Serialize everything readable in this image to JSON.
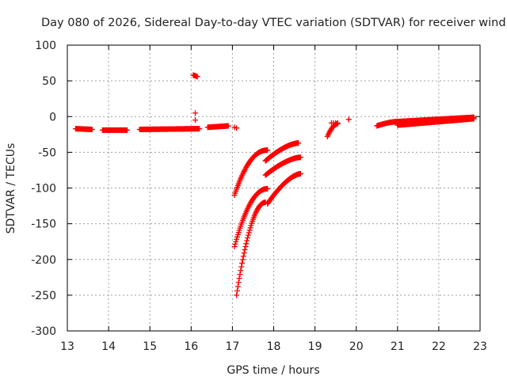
{
  "chart_data": {
    "type": "scatter",
    "title": "Day 080 of 2026, Sidereal Day-to-day VTEC variation (SDTVAR) for receiver wind",
    "xlabel": "GPS time / hours",
    "ylabel": "SDTVAR / TECUs",
    "xlim": [
      13,
      23
    ],
    "ylim": [
      -300,
      100
    ],
    "xticks": [
      "13",
      "14",
      "15",
      "16",
      "17",
      "18",
      "19",
      "20",
      "21",
      "22",
      "23"
    ],
    "yticks": [
      "100",
      "50",
      "0",
      "-50",
      "-100",
      "-150",
      "-200",
      "-250",
      "-300"
    ],
    "grid": true,
    "marker": "+",
    "color": "#ff0000",
    "series": [
      {
        "name": "SDTVAR",
        "segments": [
          {
            "x0": 13.2,
            "y0": -17,
            "x1": 13.6,
            "y1": -18,
            "step": 0.0167
          },
          {
            "x0": 13.85,
            "y0": -19,
            "x1": 14.45,
            "y1": -19,
            "step": 0.0167
          },
          {
            "x0": 14.75,
            "y0": -18,
            "x1": 16.2,
            "y1": -17,
            "step": 0.0167
          },
          {
            "x0": 16.05,
            "y0": 58,
            "x1": 16.15,
            "y1": 56,
            "step": 0.02
          },
          {
            "x0": 16.1,
            "y0": 5,
            "x1": 16.1,
            "y1": -5,
            "step": 1
          },
          {
            "x0": 16.4,
            "y0": -15,
            "x1": 16.9,
            "y1": -13,
            "step": 0.0167
          },
          {
            "x0": 17.05,
            "y0": -15,
            "x1": 17.1,
            "y1": -16,
            "step": 0.05
          },
          {
            "x0": 17.05,
            "y0": -110,
            "x1": 17.85,
            "y1": -47,
            "step": 0.0167,
            "curve": 0.6
          },
          {
            "x0": 17.05,
            "y0": -182,
            "x1": 17.85,
            "y1": -101,
            "step": 0.0167,
            "curve": 0.55
          },
          {
            "x0": 17.1,
            "y0": -250,
            "x1": 17.8,
            "y1": -120,
            "step": 0.0167,
            "curve": 0.5
          },
          {
            "x0": 17.8,
            "y0": -62,
            "x1": 18.6,
            "y1": -37,
            "step": 0.0167,
            "curve": 0.3
          },
          {
            "x0": 17.8,
            "y0": -82,
            "x1": 18.65,
            "y1": -57,
            "step": 0.0167,
            "curve": 0.3
          },
          {
            "x0": 17.85,
            "y0": -122,
            "x1": 18.65,
            "y1": -80,
            "step": 0.0167,
            "curve": 0.3
          },
          {
            "x0": 19.3,
            "y0": -28,
            "x1": 19.55,
            "y1": -10,
            "step": 0.0167,
            "curve": 0.4
          },
          {
            "x0": 19.4,
            "y0": -9,
            "x1": 19.55,
            "y1": -9,
            "step": 0.05
          },
          {
            "x0": 19.82,
            "y0": -4,
            "x1": 19.82,
            "y1": -4,
            "step": 1
          },
          {
            "x0": 20.5,
            "y0": -13,
            "x1": 21.0,
            "y1": -7,
            "step": 0.0167,
            "curve": 0.3
          },
          {
            "x0": 21.0,
            "y0": -12,
            "x1": 22.85,
            "y1": -3,
            "step": 0.0167
          },
          {
            "x0": 21.0,
            "y0": -7,
            "x1": 22.85,
            "y1": -1,
            "step": 0.0167
          }
        ]
      }
    ]
  }
}
